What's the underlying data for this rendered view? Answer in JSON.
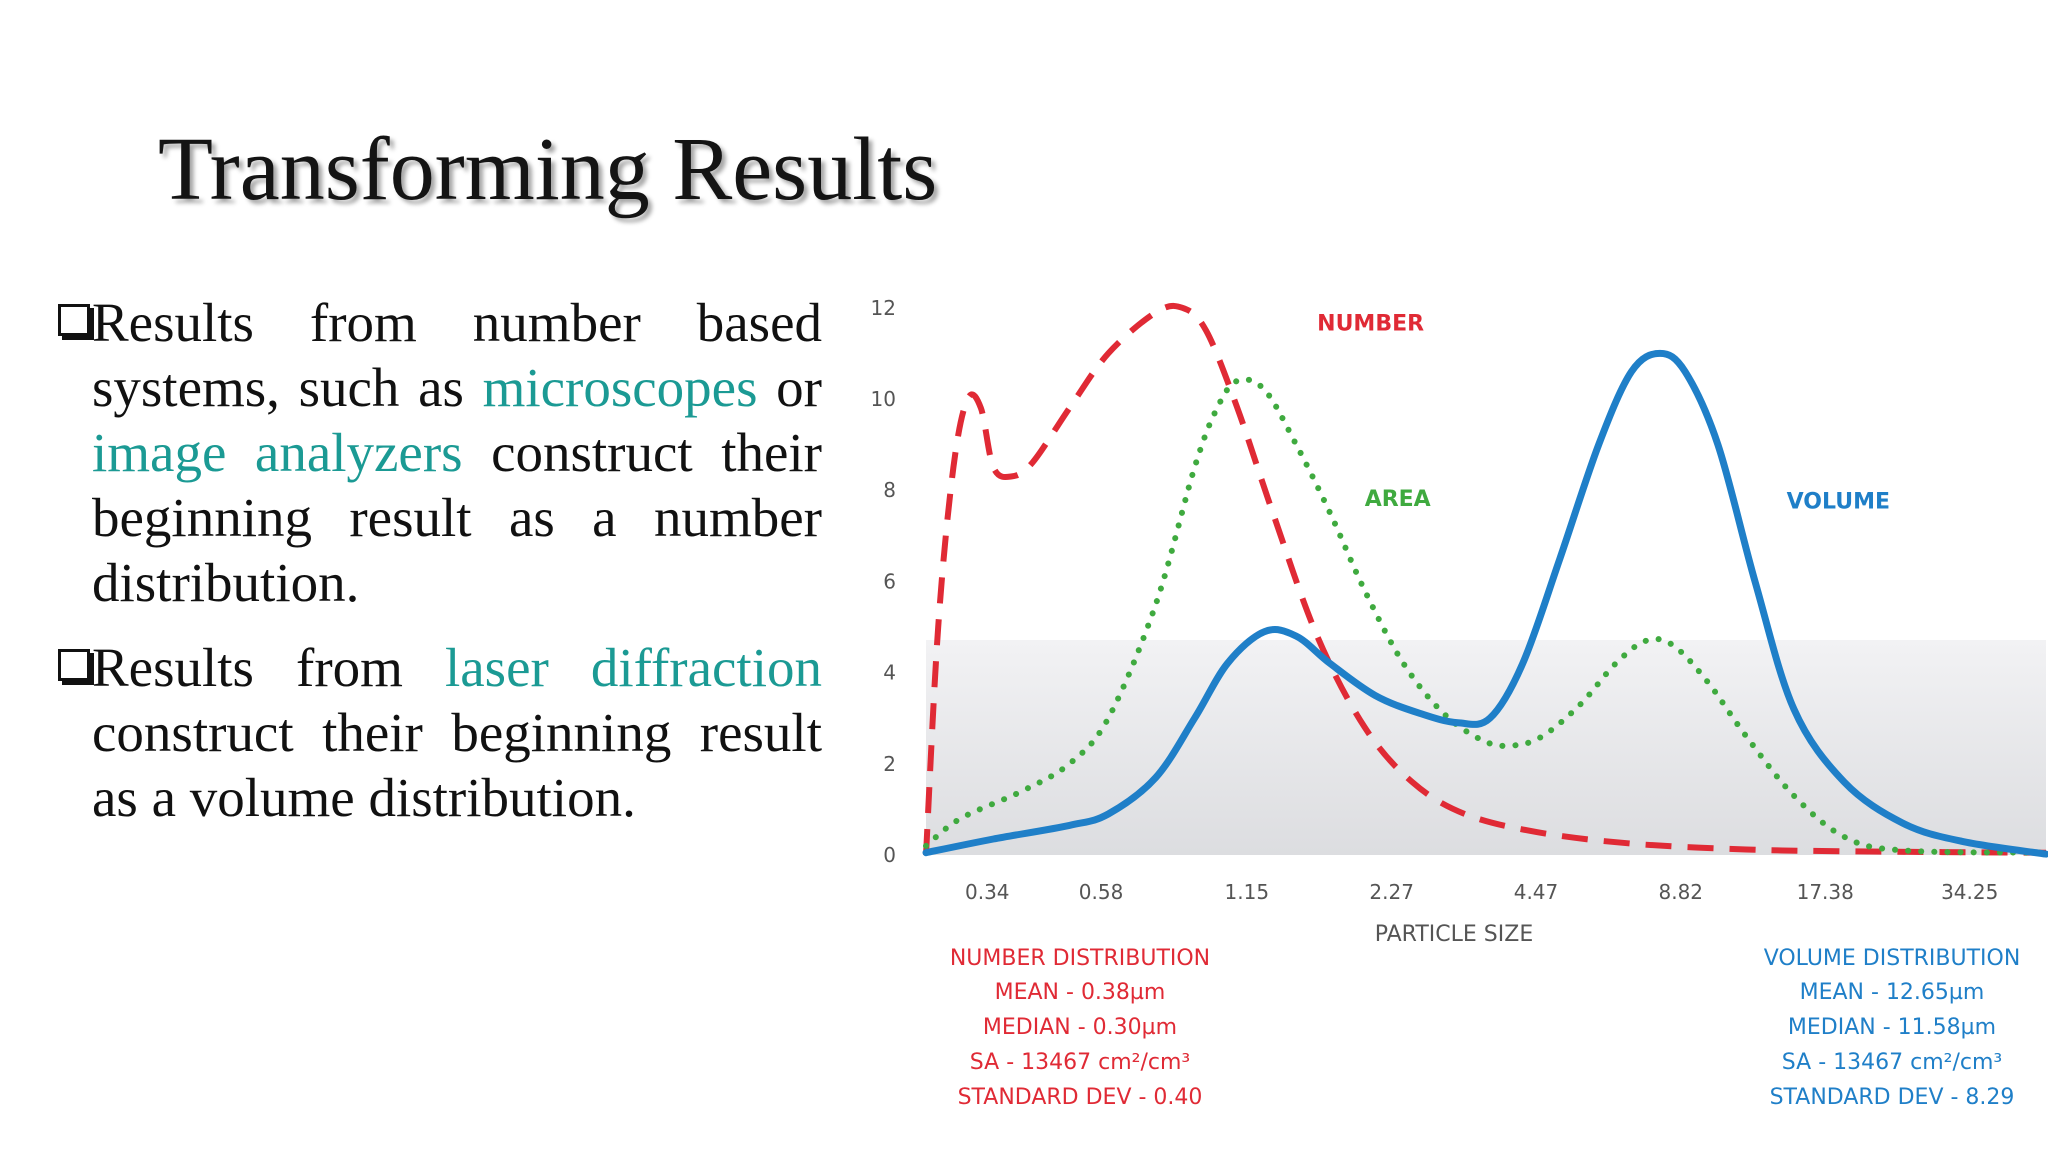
{
  "title": "Transforming Results",
  "bullets": [
    {
      "parts": [
        {
          "text": "Results from number based systems, such as ",
          "highlight": false
        },
        {
          "text": "microscopes",
          "highlight": true
        },
        {
          "text": " or ",
          "highlight": false
        },
        {
          "text": "image analyzers",
          "highlight": true
        },
        {
          "text": " construct their beginning result as a number distribution.",
          "highlight": false
        }
      ]
    },
    {
      "parts": [
        {
          "text": "Results from ",
          "highlight": false
        },
        {
          "text": "laser diffraction",
          "highlight": true
        },
        {
          "text": " construct their beginning result as a volume distribution.",
          "highlight": false
        }
      ]
    }
  ],
  "colors": {
    "highlight": "#1b9a94",
    "number": "#e02a35",
    "area": "#3faa3f",
    "volume": "#1f7fc8"
  },
  "chart_data": {
    "type": "line",
    "xlabel": "PARTICLE SIZE",
    "ylabel": "",
    "xticks": [
      "0.34",
      "0.58",
      "1.15",
      "2.27",
      "4.47",
      "8.82",
      "17.38",
      "34.25"
    ],
    "x_scale": "log",
    "xlim": [
      0.255,
      49
    ],
    "ylim": [
      0,
      12.5
    ],
    "yticks": [
      0,
      2,
      4,
      6,
      8,
      10,
      12
    ],
    "grid": false,
    "series": [
      {
        "name": "NUMBER",
        "style": "dashed",
        "color": "#e02a35",
        "points": [
          [
            0.255,
            0
          ],
          [
            0.27,
            5
          ],
          [
            0.29,
            8.5
          ],
          [
            0.31,
            10
          ],
          [
            0.33,
            9.8
          ],
          [
            0.35,
            8.5
          ],
          [
            0.38,
            8.3
          ],
          [
            0.42,
            8.6
          ],
          [
            0.5,
            9.8
          ],
          [
            0.6,
            11.0
          ],
          [
            0.75,
            11.9
          ],
          [
            0.85,
            12.0
          ],
          [
            0.95,
            11.5
          ],
          [
            1.1,
            9.8
          ],
          [
            1.3,
            7.5
          ],
          [
            1.6,
            4.8
          ],
          [
            2.0,
            2.8
          ],
          [
            2.5,
            1.6
          ],
          [
            3.2,
            0.9
          ],
          [
            4.5,
            0.5
          ],
          [
            7,
            0.25
          ],
          [
            12,
            0.12
          ],
          [
            20,
            0.08
          ],
          [
            49,
            0.05
          ]
        ]
      },
      {
        "name": "AREA",
        "style": "dotted",
        "color": "#3faa3f",
        "points": [
          [
            0.255,
            0.2
          ],
          [
            0.3,
            0.8
          ],
          [
            0.4,
            1.4
          ],
          [
            0.5,
            2.0
          ],
          [
            0.6,
            3.0
          ],
          [
            0.75,
            5.5
          ],
          [
            0.9,
            8.5
          ],
          [
            1.0,
            9.8
          ],
          [
            1.1,
            10.4
          ],
          [
            1.25,
            10.2
          ],
          [
            1.45,
            9.0
          ],
          [
            1.7,
            7.5
          ],
          [
            2.0,
            5.8
          ],
          [
            2.4,
            4.2
          ],
          [
            2.9,
            3.1
          ],
          [
            3.5,
            2.5
          ],
          [
            4.0,
            2.4
          ],
          [
            4.6,
            2.6
          ],
          [
            5.5,
            3.3
          ],
          [
            6.5,
            4.2
          ],
          [
            7.5,
            4.7
          ],
          [
            8.5,
            4.6
          ],
          [
            10,
            3.8
          ],
          [
            12,
            2.6
          ],
          [
            15,
            1.3
          ],
          [
            19,
            0.4
          ],
          [
            25,
            0.1
          ],
          [
            49,
            0.05
          ]
        ]
      },
      {
        "name": "VOLUME",
        "style": "solid",
        "color": "#1f7fc8",
        "points": [
          [
            0.255,
            0.05
          ],
          [
            0.35,
            0.35
          ],
          [
            0.5,
            0.65
          ],
          [
            0.6,
            0.9
          ],
          [
            0.75,
            1.7
          ],
          [
            0.9,
            3.0
          ],
          [
            1.05,
            4.2
          ],
          [
            1.25,
            4.9
          ],
          [
            1.45,
            4.8
          ],
          [
            1.7,
            4.2
          ],
          [
            2.1,
            3.5
          ],
          [
            2.6,
            3.1
          ],
          [
            3.1,
            2.9
          ],
          [
            3.6,
            3.0
          ],
          [
            4.2,
            4.2
          ],
          [
            5.0,
            6.5
          ],
          [
            6.0,
            9.0
          ],
          [
            7.0,
            10.6
          ],
          [
            8.0,
            11.0
          ],
          [
            9.0,
            10.6
          ],
          [
            10.5,
            9.0
          ],
          [
            12.5,
            6.0
          ],
          [
            15,
            3.2
          ],
          [
            19,
            1.6
          ],
          [
            25,
            0.7
          ],
          [
            33,
            0.3
          ],
          [
            49,
            0.02
          ]
        ]
      }
    ],
    "annotations": [
      {
        "text": "NUMBER",
        "color": "#e02a35",
        "x": 1.6,
        "y": 11.5
      },
      {
        "text": "AREA",
        "color": "#3faa3f",
        "x": 2.0,
        "y": 7.65
      },
      {
        "text": "VOLUME",
        "color": "#1f7fc8",
        "x": 14.5,
        "y": 7.6
      }
    ],
    "number_distribution": {
      "title": "NUMBER DISTRIBUTION",
      "lines": [
        "MEAN - 0.38µm",
        "MEDIAN - 0.30µm",
        "SA - 13467 cm²/cm³",
        "STANDARD DEV - 0.40"
      ]
    },
    "volume_distribution": {
      "title": "VOLUME DISTRIBUTION",
      "lines": [
        "MEAN - 12.65µm",
        "MEDIAN - 11.58µm",
        "SA - 13467 cm²/cm³",
        "STANDARD DEV - 8.29"
      ]
    }
  }
}
